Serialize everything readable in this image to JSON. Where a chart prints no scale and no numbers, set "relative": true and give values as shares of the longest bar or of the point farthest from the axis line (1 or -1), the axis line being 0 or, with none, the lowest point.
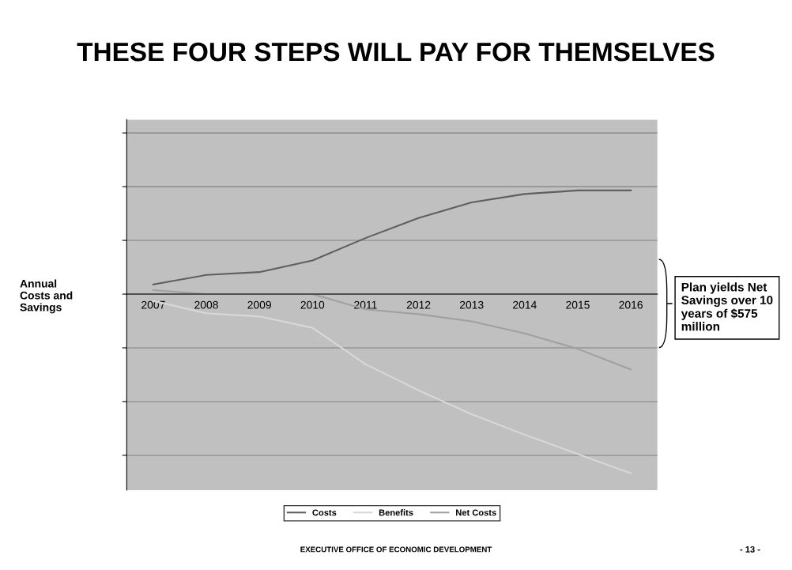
{
  "chart_data": {
    "type": "line",
    "title": "THESE FOUR STEPS WILL PAY FOR THEMSELVES",
    "ylabel": "Annual\nCosts and\nSavings",
    "categories": [
      "2007",
      "2008",
      "2009",
      "2010",
      "2011",
      "2012",
      "2013",
      "2014",
      "2015",
      "2016"
    ],
    "relative": true,
    "series": [
      {
        "name": "Costs",
        "color": "#5f5f5f",
        "values": [
          0.054,
          0.107,
          0.123,
          0.188,
          0.313,
          0.425,
          0.512,
          0.559,
          0.579,
          0.579
        ]
      },
      {
        "name": "Benefits",
        "color": "#d8d8d8",
        "values": [
          -0.038,
          -0.107,
          -0.125,
          -0.188,
          -0.391,
          -0.537,
          -0.671,
          -0.785,
          -0.893,
          -1.0
        ]
      },
      {
        "name": "Net Costs",
        "color": "#a0a0a0",
        "values": [
          0.022,
          0.0,
          0.0,
          0.0,
          -0.085,
          -0.112,
          -0.152,
          -0.219,
          -0.306,
          -0.421
        ]
      }
    ],
    "grid": "y",
    "legend": "bottom",
    "marker": "none",
    "line_style": "solid",
    "annotations": [
      "Plan yields Net Savings over 10 years of $575 million",
      "EXECUTIVE OFFICE OF ECONOMIC DEVELOPMENT",
      "- 13 -"
    ]
  }
}
